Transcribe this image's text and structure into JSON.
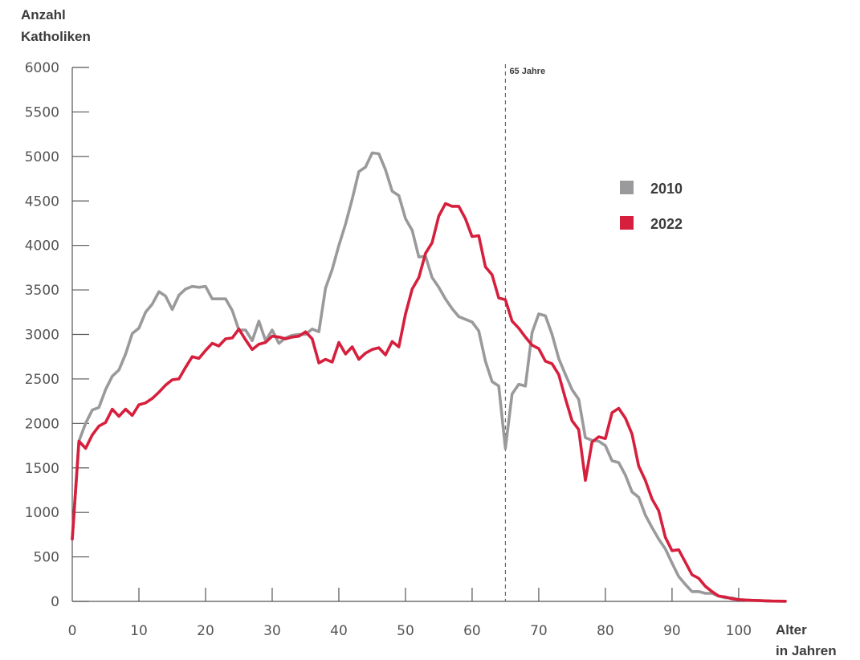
{
  "chart_data": {
    "type": "line",
    "ylabel_line1": "Anzahl",
    "ylabel_line2": "Katholiken",
    "xlabel_line1": "Alter",
    "xlabel_line2": "in Jahren",
    "xlim": [
      0,
      107
    ],
    "ylim": [
      0,
      6000
    ],
    "x_ticks": [
      0,
      10,
      20,
      30,
      40,
      50,
      60,
      70,
      80,
      90,
      100
    ],
    "y_ticks": [
      0,
      500,
      1000,
      1500,
      2000,
      2500,
      3000,
      3500,
      4000,
      4500,
      5000,
      5500,
      6000
    ],
    "grid": false,
    "legend_position": "right",
    "annotation": {
      "x": 65,
      "label": "65 Jahre"
    },
    "series": [
      {
        "name": "2010",
        "color": "#9a9a9c",
        "x": [
          0,
          1,
          2,
          3,
          4,
          5,
          6,
          7,
          8,
          9,
          10,
          11,
          12,
          13,
          14,
          15,
          16,
          17,
          18,
          19,
          20,
          21,
          22,
          23,
          24,
          25,
          26,
          27,
          28,
          29,
          30,
          31,
          32,
          33,
          34,
          35,
          36,
          37,
          38,
          39,
          40,
          41,
          42,
          43,
          44,
          45,
          46,
          47,
          48,
          49,
          50,
          51,
          52,
          53,
          54,
          55,
          56,
          57,
          58,
          59,
          60,
          61,
          62,
          63,
          64,
          65,
          66,
          67,
          68,
          69,
          70,
          71,
          72,
          73,
          74,
          75,
          76,
          77,
          78,
          79,
          80,
          81,
          82,
          83,
          84,
          85,
          86,
          87,
          88,
          89,
          90,
          91,
          92,
          93,
          94,
          95,
          96,
          97,
          98,
          99,
          100,
          101,
          102,
          103,
          104,
          105,
          106,
          107
        ],
        "values": [
          700,
          1800,
          2000,
          2150,
          2180,
          2380,
          2530,
          2600,
          2780,
          3010,
          3070,
          3250,
          3340,
          3480,
          3430,
          3280,
          3440,
          3510,
          3540,
          3530,
          3540,
          3400,
          3400,
          3400,
          3270,
          3050,
          3050,
          2930,
          3150,
          2930,
          3050,
          2900,
          2960,
          2990,
          3000,
          3000,
          3060,
          3030,
          3520,
          3730,
          4000,
          4240,
          4520,
          4830,
          4880,
          5040,
          5030,
          4850,
          4610,
          4560,
          4300,
          4170,
          3870,
          3880,
          3640,
          3530,
          3400,
          3290,
          3200,
          3170,
          3140,
          3040,
          2700,
          2470,
          2420,
          1720,
          2330,
          2440,
          2420,
          3020,
          3230,
          3210,
          3000,
          2730,
          2550,
          2380,
          2270,
          1840,
          1810,
          1800,
          1750,
          1580,
          1560,
          1420,
          1230,
          1170,
          970,
          830,
          700,
          590,
          430,
          280,
          190,
          110,
          110,
          90,
          90,
          60,
          40,
          40,
          20,
          15,
          10,
          8,
          5,
          3,
          2,
          1
        ]
      },
      {
        "name": "2022",
        "color": "#d61f3d",
        "x": [
          0,
          1,
          2,
          3,
          4,
          5,
          6,
          7,
          8,
          9,
          10,
          11,
          12,
          13,
          14,
          15,
          16,
          17,
          18,
          19,
          20,
          21,
          22,
          23,
          24,
          25,
          26,
          27,
          28,
          29,
          30,
          31,
          32,
          33,
          34,
          35,
          36,
          37,
          38,
          39,
          40,
          41,
          42,
          43,
          44,
          45,
          46,
          47,
          48,
          49,
          50,
          51,
          52,
          53,
          54,
          55,
          56,
          57,
          58,
          59,
          60,
          61,
          62,
          63,
          64,
          65,
          66,
          67,
          68,
          69,
          70,
          71,
          72,
          73,
          74,
          75,
          76,
          77,
          78,
          79,
          80,
          81,
          82,
          83,
          84,
          85,
          86,
          87,
          88,
          89,
          90,
          91,
          92,
          93,
          94,
          95,
          96,
          97,
          98,
          99,
          100,
          101,
          102,
          103,
          104,
          105,
          106,
          107
        ],
        "values": [
          700,
          1800,
          1720,
          1870,
          1970,
          2010,
          2160,
          2080,
          2160,
          2090,
          2210,
          2230,
          2280,
          2350,
          2430,
          2490,
          2500,
          2630,
          2750,
          2730,
          2820,
          2900,
          2870,
          2950,
          2960,
          3060,
          2940,
          2830,
          2890,
          2910,
          2980,
          2970,
          2950,
          2970,
          2980,
          3030,
          2950,
          2680,
          2720,
          2690,
          2910,
          2780,
          2860,
          2720,
          2790,
          2830,
          2850,
          2770,
          2920,
          2860,
          3230,
          3510,
          3640,
          3910,
          4030,
          4330,
          4470,
          4440,
          4440,
          4300,
          4100,
          4110,
          3760,
          3670,
          3410,
          3390,
          3150,
          3070,
          2970,
          2880,
          2840,
          2700,
          2670,
          2550,
          2280,
          2030,
          1930,
          1360,
          1790,
          1850,
          1830,
          2120,
          2170,
          2060,
          1880,
          1520,
          1360,
          1150,
          1020,
          720,
          570,
          580,
          440,
          300,
          260,
          170,
          110,
          60,
          50,
          30,
          20,
          15,
          12,
          10,
          6,
          4,
          3,
          2
        ]
      }
    ]
  }
}
